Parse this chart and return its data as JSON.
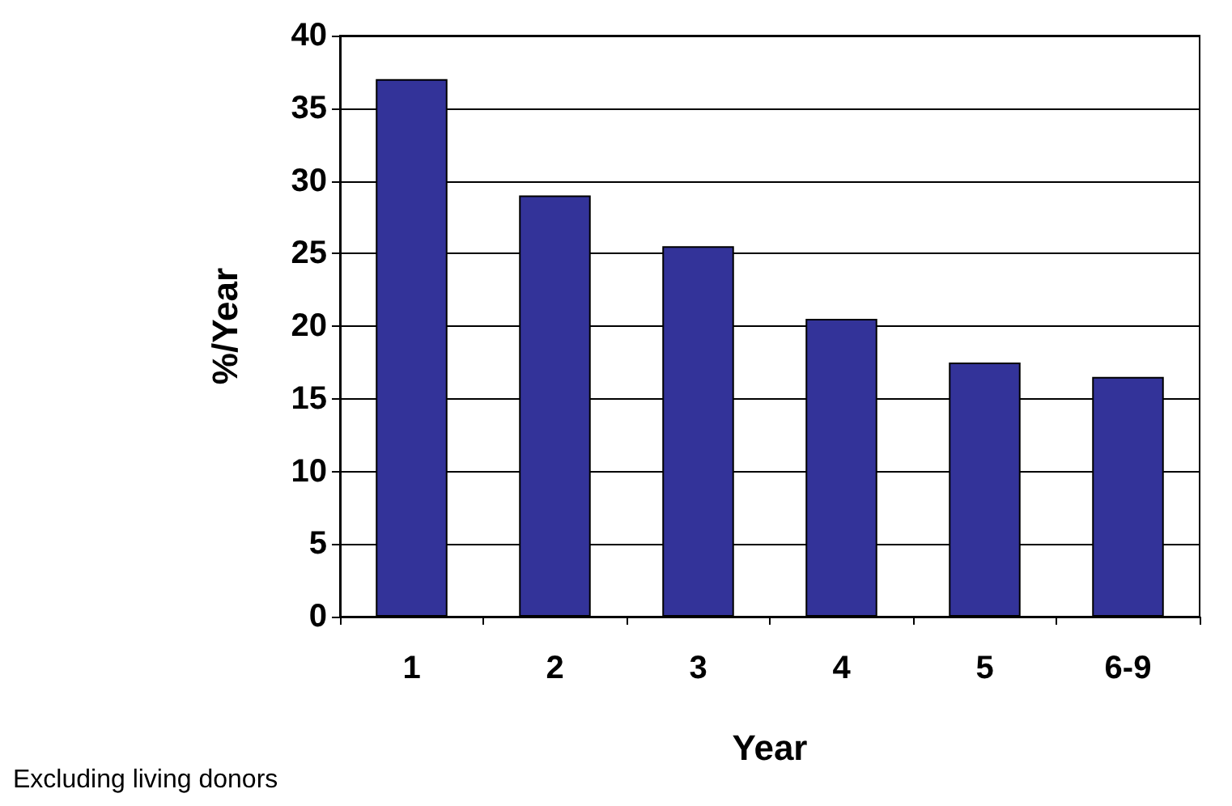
{
  "chart_data": {
    "type": "bar",
    "xlabel": "Year",
    "ylabel": "%/Year",
    "categories": [
      "1",
      "2",
      "3",
      "4",
      "5",
      "6-9"
    ],
    "values": [
      37,
      29,
      25.5,
      20.5,
      17.5,
      16.5
    ],
    "color": "#333399",
    "ylim": [
      0,
      40
    ],
    "yticks": [
      0,
      5,
      10,
      15,
      20,
      25,
      30,
      35,
      40
    ],
    "grid": "y",
    "annotations": [
      "Excluding living donors"
    ]
  }
}
